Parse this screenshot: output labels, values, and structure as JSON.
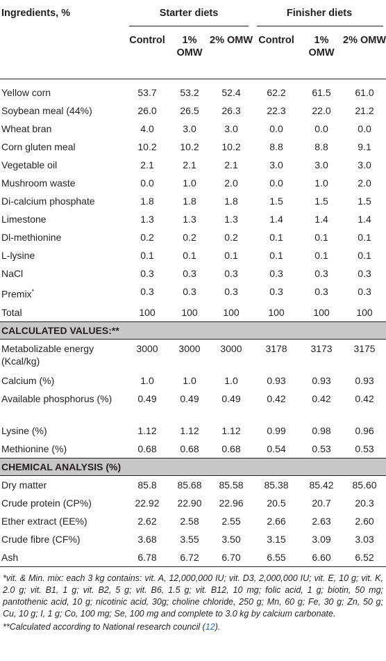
{
  "header": {
    "ingredients_label": "Ingredients, %",
    "starter_group": "Starter diets",
    "finisher_group": "Finisher diets",
    "subcols": [
      "Control",
      "1% OMW",
      "2% OMW",
      "Control",
      "1% OMW",
      "2% OMW"
    ]
  },
  "ingredients": [
    {
      "name": "Yellow corn",
      "values": [
        "53.7",
        "53.2",
        "52.4",
        "62.2",
        "61.5",
        "61.0"
      ]
    },
    {
      "name": "Soybean meal (44%)",
      "values": [
        "26.0",
        "26.5",
        "26.3",
        "22.3",
        "22.0",
        "21.2"
      ]
    },
    {
      "name": "Wheat bran",
      "values": [
        "4.0",
        "3.0",
        "3.0",
        "0.0",
        "0.0",
        "0.0"
      ]
    },
    {
      "name": "Corn gluten meal",
      "values": [
        "10.2",
        "10.2",
        "10.2",
        "8.8",
        "8.8",
        "9.1"
      ]
    },
    {
      "name": "Vegetable oil",
      "values": [
        "2.1",
        "2.1",
        "2.1",
        "3.0",
        "3.0",
        "3.0"
      ]
    },
    {
      "name": "Mushroom waste",
      "values": [
        "0.0",
        "1.0",
        "2.0",
        "0.0",
        "1.0",
        "2.0"
      ]
    },
    {
      "name": "Di-calcium phosphate",
      "values": [
        "1.8",
        "1.8",
        "1.8",
        "1.5",
        "1.5",
        "1.5"
      ]
    },
    {
      "name": "Limestone",
      "values": [
        "1.3",
        "1.3",
        "1.3",
        "1.4",
        "1.4",
        "1.4"
      ]
    },
    {
      "name": "Dl-methionine",
      "values": [
        "0.2",
        "0.2",
        "0.2",
        "0.1",
        "0.1",
        "0.1"
      ]
    },
    {
      "name": "L-lysine",
      "values": [
        "0.1",
        "0.1",
        "0.1",
        "0.1",
        "0.1",
        "0.1"
      ]
    },
    {
      "name": "NaCl",
      "values": [
        "0.3",
        "0.3",
        "0.3",
        "0.3",
        "0.3",
        "0.3"
      ]
    },
    {
      "name": "Premix*",
      "values": [
        "0.3",
        "0.3",
        "0.3",
        "0.3",
        "0.3",
        "0.3"
      ]
    },
    {
      "name": "Total",
      "values": [
        "100",
        "100",
        "100",
        "100",
        "100",
        "100"
      ]
    }
  ],
  "calculated_title": "CALCULATED VALUES:**",
  "calculated": [
    {
      "name": "Metabolizable energy (Kcal/kg)",
      "values": [
        "3000",
        "3000",
        "3000",
        "3178",
        "3173",
        "3175"
      ]
    },
    {
      "name": "Calcium (%)",
      "values": [
        "1.0",
        "1.0",
        "1.0",
        "0.93",
        "0.93",
        "0.93"
      ]
    },
    {
      "name": "Available phosphorus (%)",
      "values": [
        "0.49",
        "0.49",
        "0.49",
        "0.42",
        "0.42",
        "0.42"
      ]
    },
    {
      "name": "Lysine (%)",
      "values": [
        "1.12",
        "1.12",
        "1.12",
        "0.99",
        "0.98",
        "0.96"
      ]
    },
    {
      "name": "Methionine (%)",
      "values": [
        "0.68",
        "0.68",
        "0.68",
        "0.54",
        "0.53",
        "0.53"
      ]
    }
  ],
  "chemical_title": "CHEMICAL ANALYSIS (%)",
  "chemical": [
    {
      "name": "Dry matter",
      "values": [
        "85.8",
        "85.68",
        "85.58",
        "85.38",
        "85.42",
        "85.60"
      ]
    },
    {
      "name": "Crude protein (CP%)",
      "values": [
        "22.92",
        "22.90",
        "22.96",
        "20.5",
        "20.7",
        "20.3"
      ]
    },
    {
      "name": "Ether extract (EE%)",
      "values": [
        "2.62",
        "2.58",
        "2.55",
        "2.66",
        "2.63",
        "2.60"
      ]
    },
    {
      "name": "Crude fibre (CF%)",
      "values": [
        "3.68",
        "3.55",
        "3.50",
        "3.15",
        "3.09",
        "3.03"
      ]
    },
    {
      "name": "Ash",
      "values": [
        "6.78",
        "6.72",
        "6.70",
        "6.55",
        "6.60",
        "6.52"
      ]
    }
  ],
  "footnotes": {
    "note1": "*vit. & Min. mix: each 3 kg contains: vit. A, 12,000,000 IU; vit. D3, 2,000,000 IU; vit. E, 10 g; vit. K, 2.0 g; vit. B1, 1 g; vit. B2, 5 g; vit. B6, 1.5 g; vit. B12, 10 mg; folic acid, 1 g; biotin, 50 mg; pantothenic acid, 10 g; nicotinic acid, 30g; choline chloride, 250 g; Mn, 60 g; Fe, 30 g; Zn, 50 g; Cu, 10 g; I, 1 g; Co, 100 mg; Se, 100 mg and complete to 3.0 kg by calcium carbonate.",
    "note2_text": "**Calculated according to National research council (",
    "note2_cite": "12",
    "note2_end": ")."
  }
}
